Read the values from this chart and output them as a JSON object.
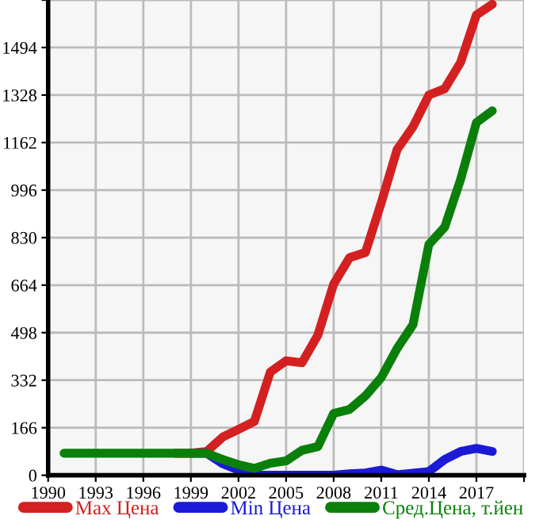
{
  "chart_data": {
    "type": "line",
    "x": [
      1991,
      1992,
      1993,
      1994,
      1995,
      1996,
      1997,
      1998,
      1999,
      2000,
      2001,
      2002,
      2003,
      2004,
      2005,
      2006,
      2007,
      2008,
      2009,
      2010,
      2011,
      2012,
      2013,
      2014,
      2015,
      2016,
      2017,
      2018
    ],
    "series": [
      {
        "name": "Max Цена",
        "color": "#d42020",
        "values": [
          null,
          null,
          null,
          null,
          null,
          null,
          null,
          77,
          77,
          83,
          133,
          160,
          188,
          360,
          400,
          393,
          489,
          668,
          760,
          778,
          952,
          1138,
          1217,
          1328,
          1350,
          1442,
          1608,
          1645
        ]
      },
      {
        "name": "Min Цена",
        "color": "#1a1ad8",
        "values": [
          null,
          null,
          null,
          null,
          null,
          null,
          null,
          null,
          77,
          77,
          40,
          18,
          0,
          0,
          0,
          0,
          0,
          0,
          5,
          8,
          18,
          2,
          7,
          13,
          55,
          83,
          94,
          83
        ]
      },
      {
        "name": "Сред.Цена, т.йен",
        "color": "#0a800a",
        "values": [
          77,
          77,
          77,
          77,
          77,
          77,
          77,
          77,
          77,
          77,
          55,
          37,
          24,
          42,
          50,
          87,
          100,
          216,
          230,
          277,
          341,
          443,
          526,
          806,
          867,
          1033,
          1232,
          1273
        ]
      }
    ],
    "xlim": [
      1990,
      2020
    ],
    "xticks": [
      1990,
      1993,
      1996,
      1999,
      2002,
      2005,
      2008,
      2011,
      2014,
      2017,
      {
        "value": 2020,
        "label": null
      }
    ],
    "ylim": [
      0,
      1660
    ],
    "yticks": [
      0,
      166,
      332,
      498,
      664,
      830,
      996,
      1162,
      1328,
      1494,
      {
        "value": 1660,
        "label": null
      }
    ],
    "grid": true,
    "legend": "bottom",
    "marker": "none",
    "line_style": "solid"
  }
}
